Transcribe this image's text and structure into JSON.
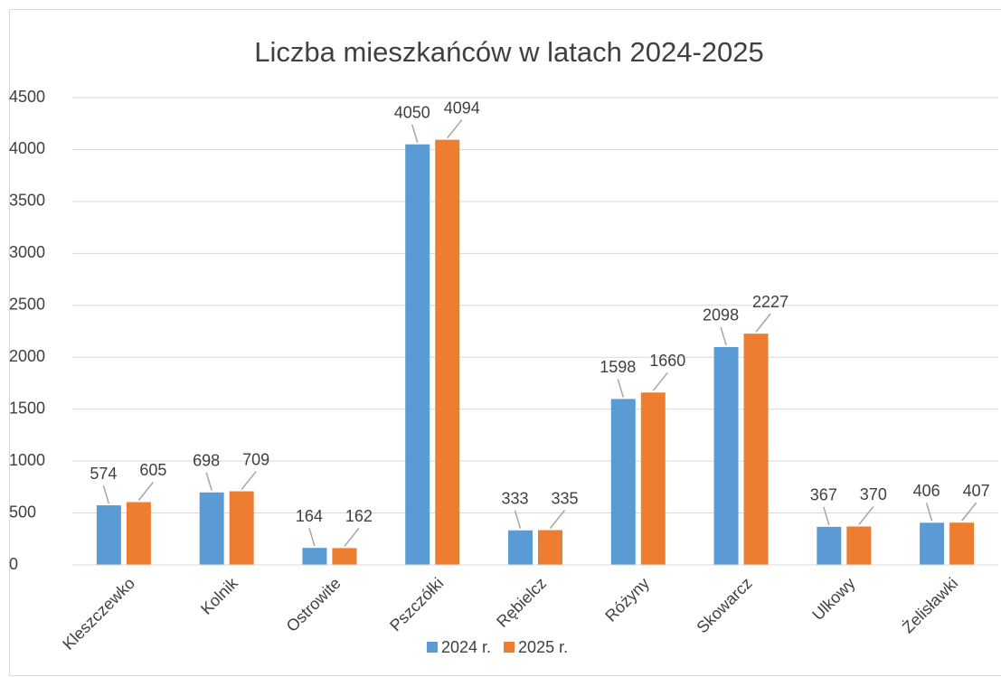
{
  "chart_data": {
    "type": "bar",
    "title": "Liczba mieszkańców w latach 2024-2025",
    "categories": [
      "Kleszczewko",
      "Kolnik",
      "Ostrowite",
      "Pszczółki",
      "Rębielcz",
      "Różyny",
      "Skowarcz",
      "Ulkowy",
      "Żelisławki"
    ],
    "series": [
      {
        "name": "2024 r.",
        "color": "#5b9bd5",
        "values": [
          574,
          698,
          164,
          4050,
          333,
          1598,
          2098,
          367,
          406
        ]
      },
      {
        "name": "2025 r.",
        "color": "#ed7d31",
        "values": [
          605,
          709,
          162,
          4094,
          335,
          1660,
          2227,
          370,
          407
        ]
      }
    ],
    "ylim": [
      0,
      4500
    ],
    "yticks": [
      0,
      500,
      1000,
      1500,
      2000,
      2500,
      3000,
      3500,
      4000,
      4500
    ],
    "grid": true,
    "legend": "bottom"
  }
}
